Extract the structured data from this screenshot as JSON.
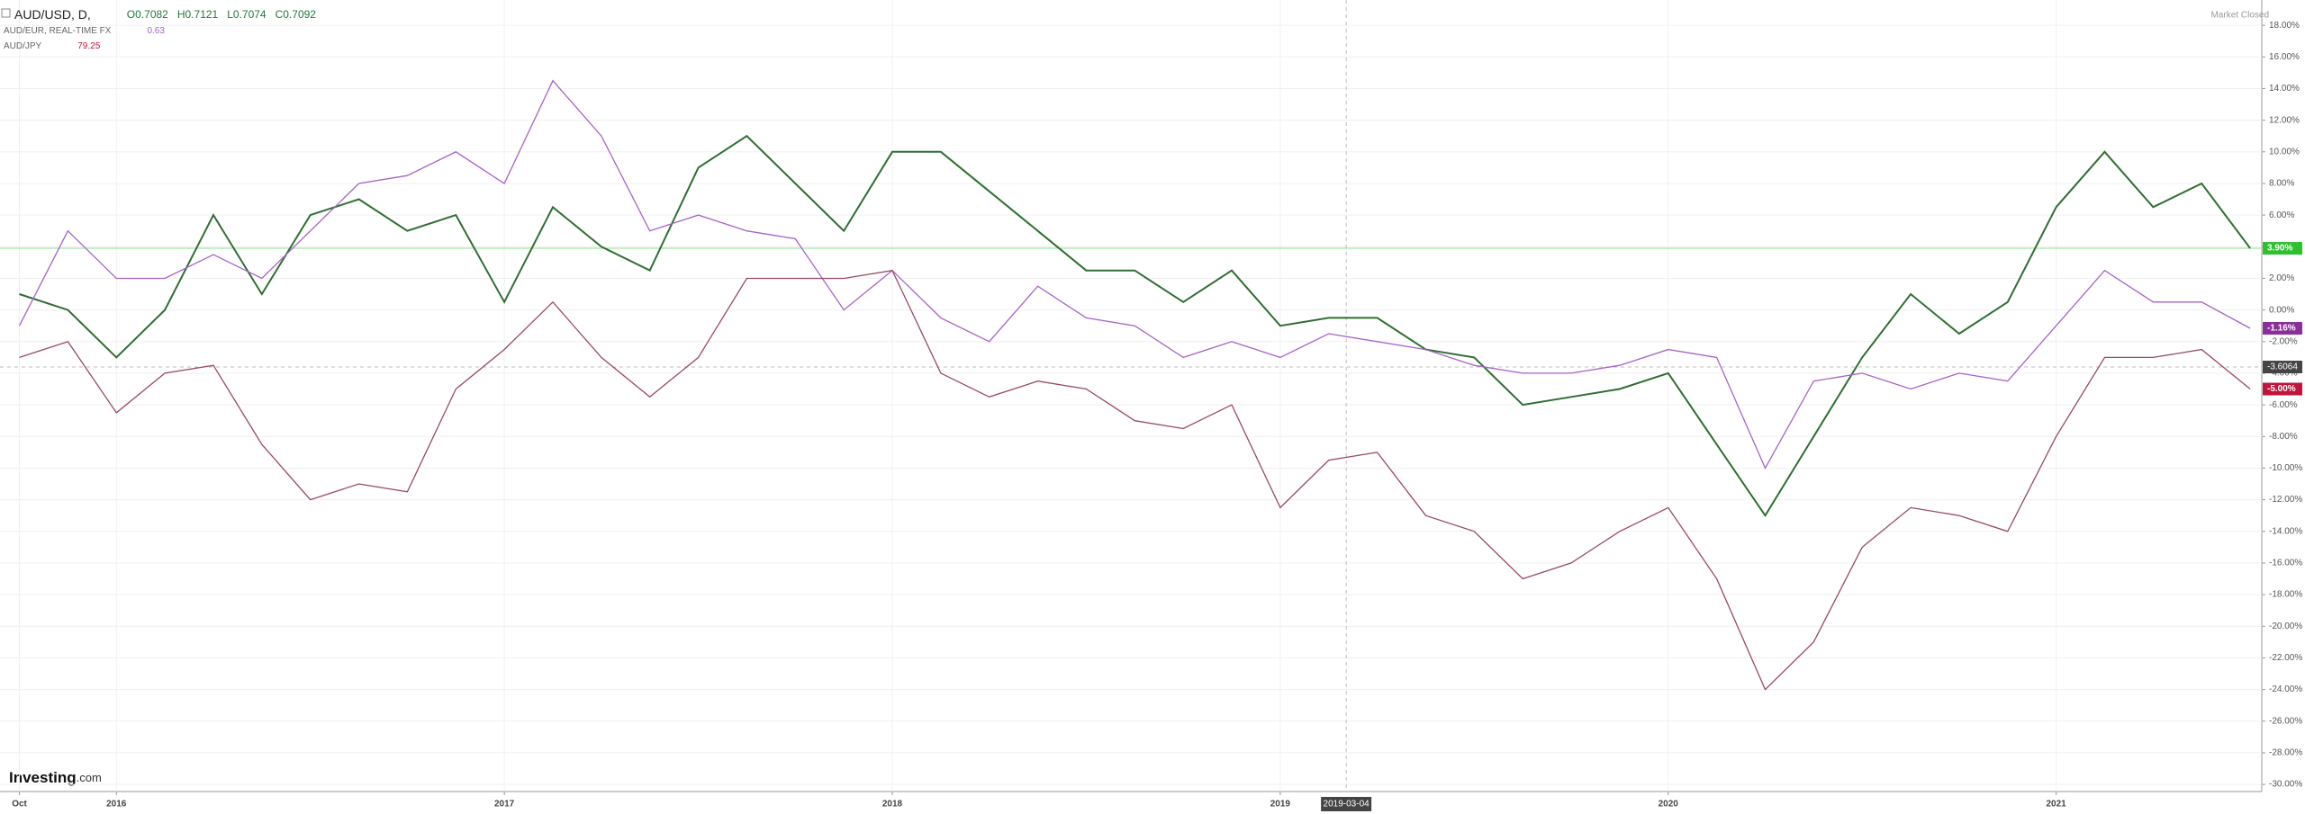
{
  "chart_data": {
    "type": "line",
    "legend": [
      {
        "name": "AUD/USD, D,",
        "quote": [
          "O0.7082",
          "H0.7121",
          "L0.7074",
          "C0.7092"
        ]
      },
      {
        "name": "AUD/EUR, REAL-TIME FX",
        "quote": [
          "0.63"
        ]
      },
      {
        "name": "AUD/JPY",
        "quote": [
          "79.25"
        ]
      }
    ],
    "status": "Market Closed",
    "logo": [
      "Investing",
      ".com"
    ],
    "x": [
      2015.75,
      2015.875,
      2016,
      2016.125,
      2016.25,
      2016.375,
      2016.5,
      2016.625,
      2016.75,
      2016.875,
      2017,
      2017.125,
      2017.25,
      2017.375,
      2017.5,
      2017.625,
      2017.75,
      2017.875,
      2018,
      2018.125,
      2018.25,
      2018.375,
      2018.5,
      2018.625,
      2018.75,
      2018.875,
      2019,
      2019.125,
      2019.25,
      2019.375,
      2019.5,
      2019.625,
      2019.75,
      2019.875,
      2020,
      2020.125,
      2020.25,
      2020.375,
      2020.5,
      2020.625,
      2020.75,
      2020.875,
      2021,
      2021.125,
      2021.25,
      2021.375,
      2021.5
    ],
    "series": [
      {
        "name": "AUD/USD",
        "color": "#2f6e33",
        "last_label": "3.90%",
        "badge_color": "#2fc02f",
        "values": [
          1,
          0,
          -3,
          0,
          6,
          1,
          6,
          7,
          5,
          6,
          0.5,
          6.5,
          4,
          2.5,
          9,
          11,
          8,
          5,
          10,
          10,
          7.5,
          5,
          2.5,
          2.5,
          0.5,
          2.5,
          -1,
          -0.5,
          -0.5,
          -2.5,
          -3,
          -6,
          -5.5,
          -5,
          -4,
          -8.5,
          -13,
          -8,
          -3,
          1,
          -1.5,
          0.5,
          6.5,
          10,
          6.5,
          8,
          3.9
        ]
      },
      {
        "name": "AUD/EUR",
        "color": "#a662c8",
        "last_label": "-1.16%",
        "badge_color": "#8a2f9a",
        "values": [
          -1,
          5,
          2,
          2,
          3.5,
          2,
          5,
          8,
          8.5,
          10,
          8,
          14.5,
          11,
          5,
          6,
          5,
          4.5,
          0,
          2.5,
          -0.5,
          -2,
          1.5,
          -0.5,
          -1,
          -3,
          -2,
          -3,
          -1.5,
          -2,
          -2.5,
          -3.5,
          -4,
          -4,
          -3.5,
          -2.5,
          -3,
          -10,
          -4.5,
          -4,
          -5,
          -4,
          -4.5,
          -1,
          2.5,
          0.5,
          0.5,
          -1.16
        ]
      },
      {
        "name": "AUD/JPY",
        "color": "#9a4868",
        "last_label": "-5.00%",
        "badge_color": "#c0143c",
        "values": [
          -3,
          -2,
          -6.5,
          -4,
          -3.5,
          -8.5,
          -12,
          -11,
          -11.5,
          -5,
          -2.5,
          0.5,
          -3,
          -5.5,
          -3,
          2,
          2,
          2,
          2.5,
          -4,
          -5.5,
          -4.5,
          -5,
          -7,
          -7.5,
          -6,
          -12.5,
          -9.5,
          -9,
          -13,
          -14,
          -17,
          -16,
          -14,
          -12.5,
          -17,
          -24,
          -21,
          -15,
          -12.5,
          -13,
          -14,
          -8,
          -3,
          -3,
          -2.5,
          -5
        ]
      }
    ],
    "hline": {
      "value": 3.9,
      "color": "#8de08d"
    },
    "crosshair": {
      "x": {
        "value": 2019.17,
        "label": "2019-03-04"
      },
      "y": -3.6064
    },
    "xlim": [
      2015.7,
      2021.53
    ],
    "xticks": [
      {
        "value": 2015.75,
        "label": "Oct"
      },
      2016,
      2017,
      2018,
      2019,
      2020,
      2021
    ],
    "ylim": [
      -30.45,
      19.6
    ],
    "yticks": [
      {
        "value": 18,
        "label": "18.00%"
      },
      {
        "value": 16,
        "label": "16.00%"
      },
      {
        "value": 14,
        "label": "14.00%"
      },
      {
        "value": 12,
        "label": "12.00%"
      },
      {
        "value": 10,
        "label": "10.00%"
      },
      {
        "value": 8,
        "label": "8.00%"
      },
      {
        "value": 6,
        "label": "6.00%"
      },
      {
        "value": 4,
        "label": "4.00%"
      },
      {
        "value": 2,
        "label": "2.00%"
      },
      {
        "value": 0,
        "label": "0.00%"
      },
      {
        "value": -2,
        "label": "-2.00%"
      },
      {
        "value": -4,
        "label": "-4.00%"
      },
      {
        "value": -6,
        "label": "-6.00%"
      },
      {
        "value": -8,
        "label": "-8.00%"
      },
      {
        "value": -10,
        "label": "-10.00%"
      },
      {
        "value": -12,
        "label": "-12.00%"
      },
      {
        "value": -14,
        "label": "-14.00%"
      },
      {
        "value": -16,
        "label": "-16.00%"
      },
      {
        "value": -18,
        "label": "-18.00%"
      },
      {
        "value": -20,
        "label": "-20.00%"
      },
      {
        "value": -22,
        "label": "-22.00%"
      },
      {
        "value": -24,
        "label": "-24.00%"
      },
      {
        "value": -26,
        "label": "-26.00%"
      },
      {
        "value": -28,
        "label": "-28.00%"
      },
      {
        "value": -30,
        "label": "-30.00%"
      }
    ],
    "grid": true
  }
}
